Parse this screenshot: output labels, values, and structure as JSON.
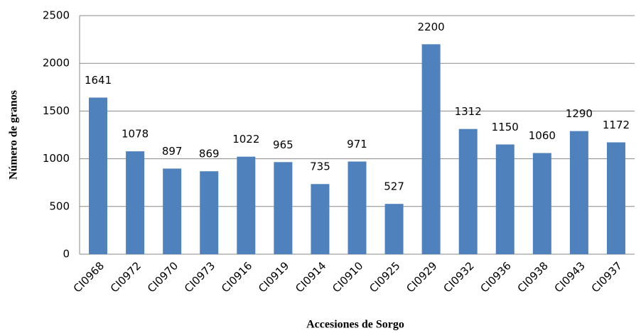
{
  "chart_data": {
    "type": "bar",
    "x_label": "Accesiones de Sorgo",
    "y_label": "Número de granos",
    "categories": [
      "CI0968",
      "CI0972",
      "CI0970",
      "CI0973",
      "CI0916",
      "CI0919",
      "CI0914",
      "CI0910",
      "CI0925",
      "CI0929",
      "CI0932",
      "CI0936",
      "CI0938",
      "CI0943",
      "CI0937"
    ],
    "values": [
      1641,
      1078,
      897,
      869,
      1022,
      965,
      735,
      971,
      527,
      2200,
      1312,
      1150,
      1060,
      1290,
      1172
    ],
    "color": "#4f81bd",
    "ylim": [
      0,
      2500
    ],
    "yticks": [
      0,
      500,
      1000,
      1500,
      2000,
      2500
    ],
    "grid": true
  }
}
